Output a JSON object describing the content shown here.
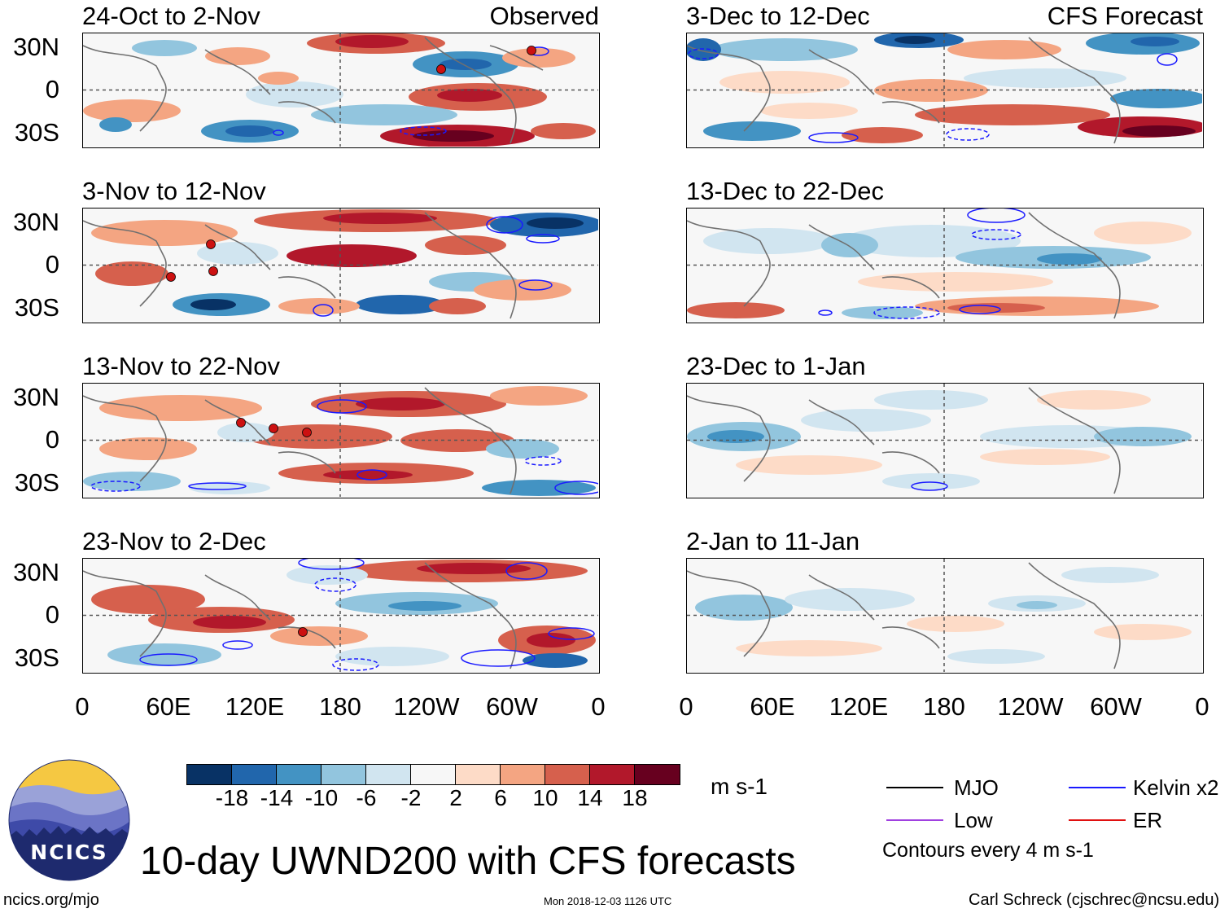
{
  "panels": [
    {
      "title": "24-Oct to 2-Nov",
      "tag": "Observed"
    },
    {
      "title": "3-Nov to 12-Nov",
      "tag": ""
    },
    {
      "title": "13-Nov to 22-Nov",
      "tag": ""
    },
    {
      "title": "23-Nov to 2-Dec",
      "tag": ""
    },
    {
      "title": "3-Dec to 12-Dec",
      "tag": "CFS Forecast"
    },
    {
      "title": "13-Dec to 22-Dec",
      "tag": ""
    },
    {
      "title": "23-Dec to 1-Jan",
      "tag": ""
    },
    {
      "title": "2-Jan to 11-Jan",
      "tag": ""
    }
  ],
  "lat_labels": [
    "30N",
    "0",
    "30S"
  ],
  "lon_labels": [
    "0",
    "60E",
    "120E",
    "180",
    "120W",
    "60W",
    "0"
  ],
  "colorbar": {
    "colors": [
      "#083265",
      "#2166ac",
      "#4393c3",
      "#92c5de",
      "#d1e5f0",
      "#f7f7f7",
      "#fddbc7",
      "#f4a582",
      "#d6604d",
      "#b2182b",
      "#67001f"
    ],
    "labels": [
      "-18",
      "-14",
      "-10",
      "-6",
      "-2",
      "2",
      "6",
      "10",
      "14",
      "18"
    ],
    "units": "m s-1"
  },
  "legend": [
    {
      "label": "MJO",
      "color": "#000000"
    },
    {
      "label": "Kelvin x2",
      "color": "#1a1aff"
    },
    {
      "label": "Low",
      "color": "#a040e0"
    },
    {
      "label": "ER",
      "color": "#e01010"
    }
  ],
  "contour_note": "Contours every 4 m s-1",
  "main_title": "10-day UWND200 with CFS forecasts",
  "logo_text": "NCICS",
  "footer": {
    "url": "ncics.org/mjo",
    "timestamp": "Mon 2018-12-03 1126 UTC",
    "credit": "Carl Schreck (cjschrec@ncsu.edu)"
  }
}
